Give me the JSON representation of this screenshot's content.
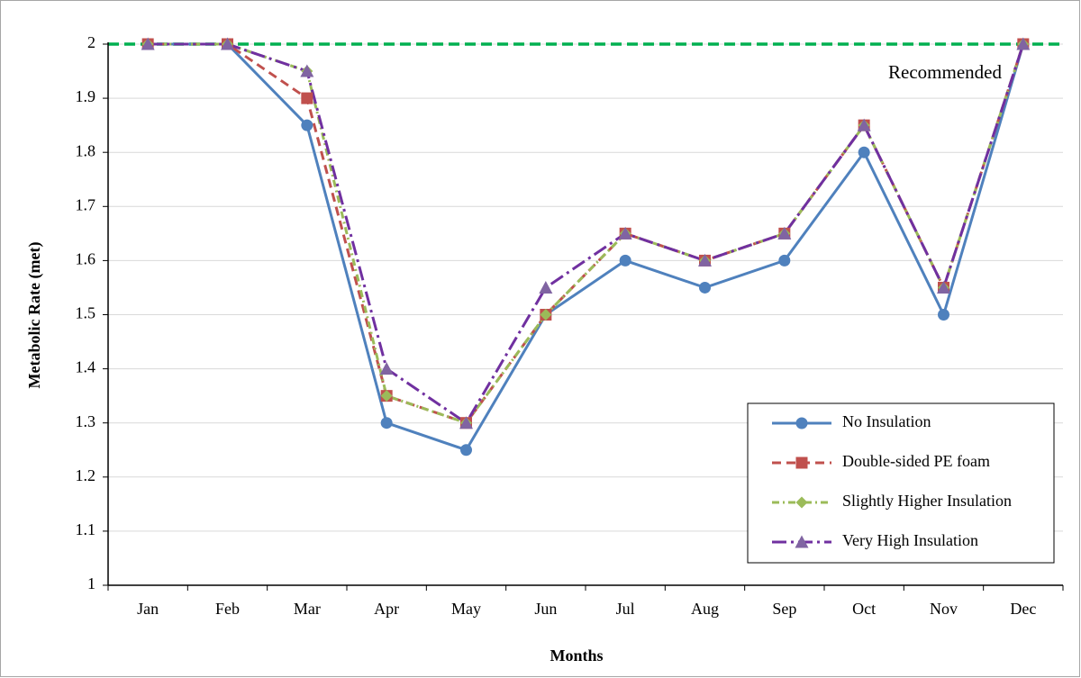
{
  "chart_data": {
    "type": "line",
    "x_label": "Months",
    "y_label": "Metabolic Rate (met)",
    "categories": [
      "Jan",
      "Feb",
      "Mar",
      "Apr",
      "May",
      "Jun",
      "Jul",
      "Aug",
      "Sep",
      "Oct",
      "Nov",
      "Dec"
    ],
    "series": [
      {
        "name": "No Insulation",
        "color": "#4f81bd",
        "marker": "circle",
        "line_style": "solid",
        "values": [
          2,
          2,
          1.85,
          1.3,
          1.25,
          1.5,
          1.6,
          1.55,
          1.6,
          1.8,
          1.5,
          2
        ]
      },
      {
        "name": "Double-sided PE foam",
        "color": "#c0504d",
        "marker": "square",
        "line_style": "dashed",
        "values": [
          2,
          2,
          1.9,
          1.35,
          1.3,
          1.5,
          1.65,
          1.6,
          1.65,
          1.85,
          1.55,
          2
        ]
      },
      {
        "name": "Slightly Higher Insulation",
        "color": "#9bbb59",
        "marker": "diamond",
        "line_style": "dash-dot",
        "values": [
          2,
          2,
          1.95,
          1.35,
          1.3,
          1.5,
          1.65,
          1.6,
          1.65,
          1.85,
          1.55,
          2
        ]
      },
      {
        "name": "Very High Insulation",
        "color": "#7030a0",
        "marker_color": "#8064a2",
        "marker": "triangle",
        "line_style": "long-dash-dot",
        "values": [
          2,
          2,
          1.95,
          1.4,
          1.3,
          1.55,
          1.65,
          1.6,
          1.65,
          1.85,
          1.55,
          2
        ]
      }
    ],
    "reference_line": {
      "value": 2,
      "label": "Recommended",
      "color": "#00b050"
    },
    "ylim": [
      1,
      2
    ],
    "yticks": [
      1,
      1.1,
      1.2,
      1.3,
      1.4,
      1.5,
      1.6,
      1.7,
      1.8,
      1.9,
      2
    ],
    "grid": true,
    "legend": "lower right"
  }
}
